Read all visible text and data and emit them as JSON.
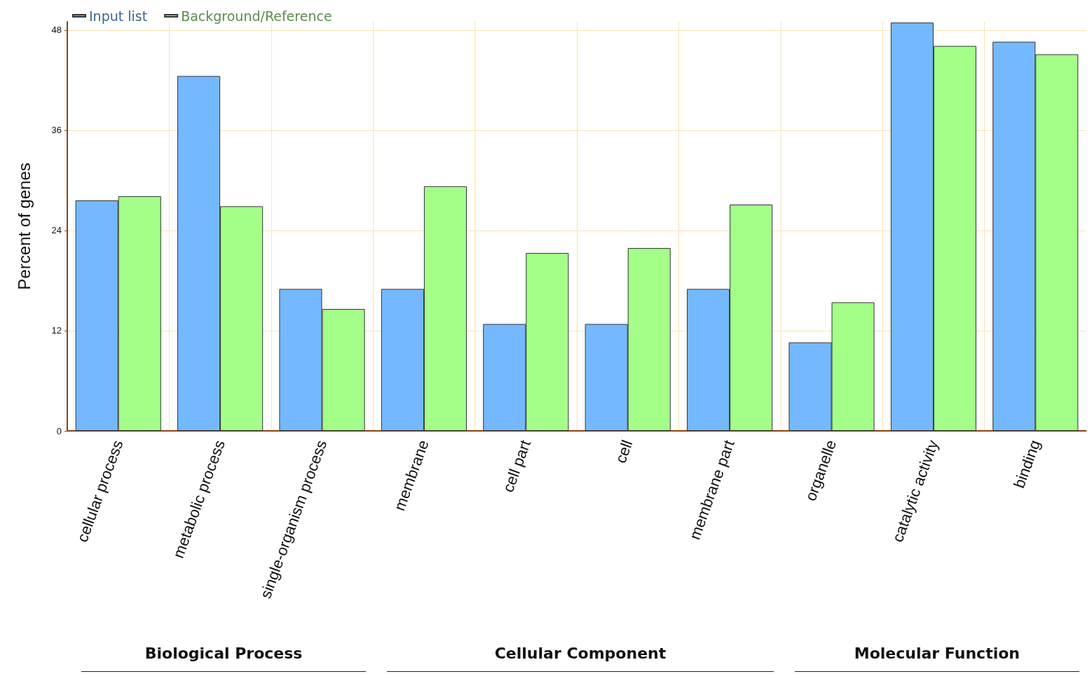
{
  "chart_data": {
    "type": "bar",
    "ylabel": "Percent of genes",
    "categories": [
      "cellular process",
      "metabolic process",
      "single-organism process",
      "membrane",
      "cell part",
      "cell",
      "membrane part",
      "organelle",
      "catalytic activity",
      "binding"
    ],
    "series": [
      {
        "name": "Input list",
        "color": "#74b9ff",
        "values": [
          27.6,
          42.5,
          17.0,
          17.0,
          12.8,
          12.8,
          17.0,
          10.6,
          48.9,
          46.6
        ]
      },
      {
        "name": "Background/Reference",
        "color": "#a3ff88",
        "values": [
          28.1,
          26.9,
          14.6,
          29.3,
          21.3,
          21.9,
          27.1,
          15.4,
          46.1,
          45.1
        ]
      }
    ],
    "ylim": [
      0,
      49
    ],
    "yticks": [
      0,
      12,
      24,
      36,
      48
    ],
    "grid": true,
    "legend": "top left",
    "annotations": [
      "Biological Process",
      "Cellular Component",
      "Molecular Function"
    ]
  }
}
